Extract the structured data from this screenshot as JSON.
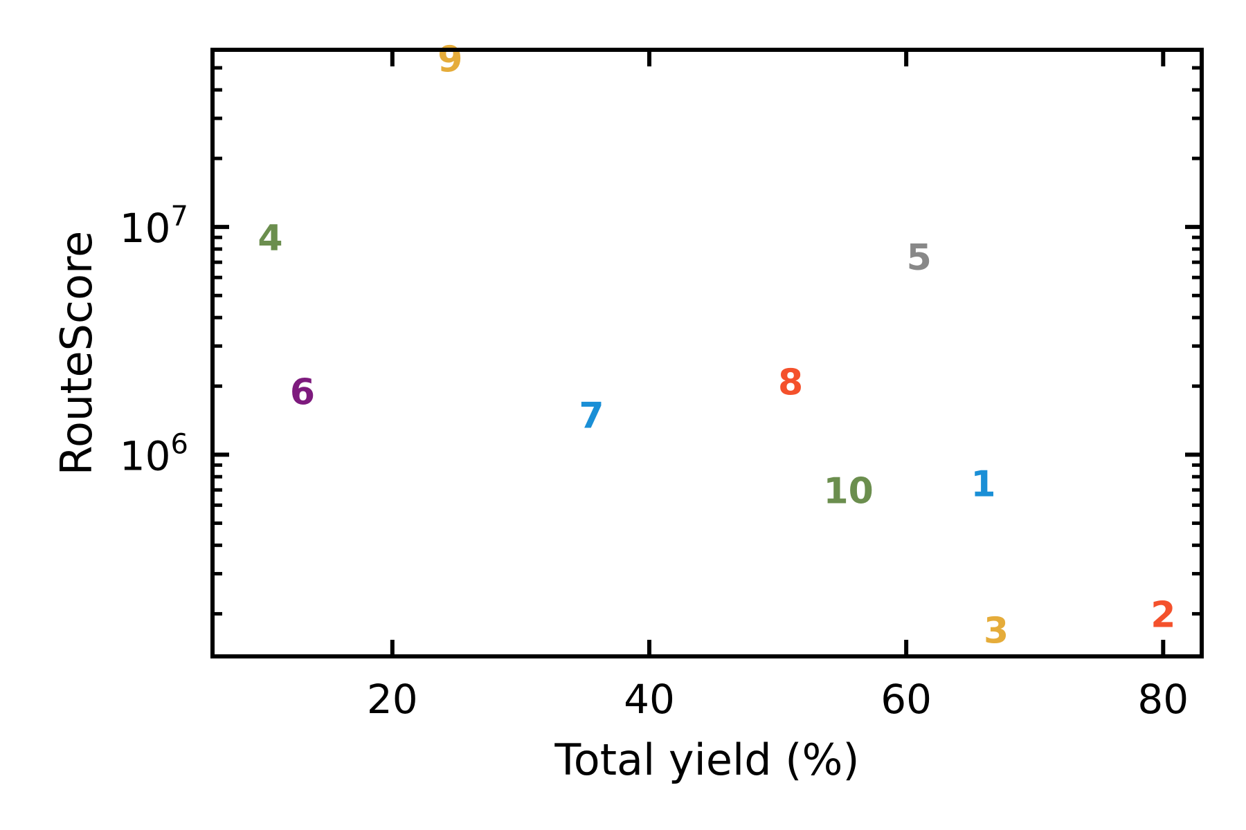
{
  "chart_data": {
    "type": "scatter",
    "xlabel": "Total yield (%)",
    "ylabel": "RouteScore",
    "x_scale": "linear",
    "y_scale": "log",
    "xlim": [
      6,
      83
    ],
    "ylim": [
      130000,
      60000000
    ],
    "x_ticks": [
      20,
      40,
      60,
      80
    ],
    "x_tick_labels": [
      "20",
      "40",
      "60",
      "80"
    ],
    "y_ticks": [
      1000000,
      10000000
    ],
    "y_tick_labels": [
      {
        "base": "10",
        "exp": "6"
      },
      {
        "base": "10",
        "exp": "7"
      }
    ],
    "grid": false,
    "legend": "none",
    "points": [
      {
        "label": "1",
        "x": 66,
        "y": 750000,
        "color": "#1a8fd6"
      },
      {
        "label": "2",
        "x": 80,
        "y": 200000,
        "color": "#f4512c"
      },
      {
        "label": "3",
        "x": 67,
        "y": 170000,
        "color": "#e5ac3a"
      },
      {
        "label": "4",
        "x": 10.5,
        "y": 9000000,
        "color": "#6b8e4e"
      },
      {
        "label": "5",
        "x": 61,
        "y": 7400000,
        "color": "#888888"
      },
      {
        "label": "6",
        "x": 13,
        "y": 1900000,
        "color": "#7d1a7d"
      },
      {
        "label": "7",
        "x": 35.5,
        "y": 1500000,
        "color": "#1a8fd6"
      },
      {
        "label": "8",
        "x": 51,
        "y": 2100000,
        "color": "#f4512c"
      },
      {
        "label": "9",
        "x": 24.5,
        "y": 55000000,
        "color": "#e5ac3a"
      },
      {
        "label": "10",
        "x": 55.5,
        "y": 700000,
        "color": "#6b8e4e"
      }
    ]
  }
}
